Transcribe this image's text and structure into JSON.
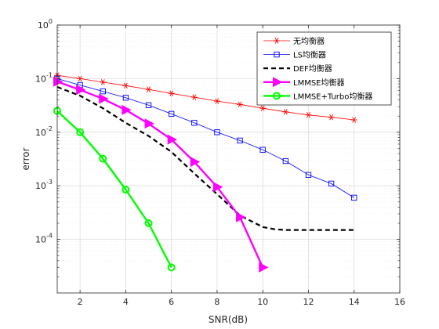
{
  "chart_data": {
    "type": "line",
    "title": "",
    "xlabel": "SNR(dB)",
    "ylabel": "error",
    "xlim": [
      1,
      16
    ],
    "ylim": [
      1e-05,
      1
    ],
    "yscale": "log",
    "xticks": [
      2,
      4,
      6,
      8,
      10,
      12,
      14,
      16
    ],
    "yticks": [
      {
        "value": 0.0001,
        "base": "10",
        "exp": "-4"
      },
      {
        "value": 0.001,
        "base": "10",
        "exp": "-3"
      },
      {
        "value": 0.01,
        "base": "10",
        "exp": "-2"
      },
      {
        "value": 0.1,
        "base": "10",
        "exp": "-1"
      },
      {
        "value": 1,
        "base": "10",
        "exp": "0"
      }
    ],
    "grid": true,
    "minor_grid": true,
    "legend_position": "top-right",
    "series": [
      {
        "name": "无均衡器",
        "color": "#ff0000",
        "marker": "asterisk",
        "line_style": "solid",
        "line_width": 0.8,
        "x": [
          1,
          2,
          3,
          4,
          5,
          6,
          7,
          8,
          9,
          10,
          11,
          12,
          13,
          14
        ],
        "y": [
          0.115,
          0.1,
          0.086,
          0.074,
          0.063,
          0.053,
          0.045,
          0.038,
          0.033,
          0.028,
          0.024,
          0.021,
          0.019,
          0.017
        ]
      },
      {
        "name": "LS均衡器",
        "color": "#0000ff",
        "marker": "square",
        "line_style": "solid",
        "line_width": 0.8,
        "x": [
          1,
          2,
          3,
          4,
          5,
          6,
          7,
          8,
          9,
          10,
          11,
          12,
          13,
          14
        ],
        "y": [
          0.1,
          0.076,
          0.058,
          0.044,
          0.032,
          0.022,
          0.015,
          0.01,
          0.007,
          0.0047,
          0.0029,
          0.0016,
          0.0011,
          0.0006
        ]
      },
      {
        "name": "DEF均衡器",
        "color": "#000000",
        "marker": "none",
        "line_style": "dashed",
        "line_width": 2.2,
        "x": [
          1,
          2,
          3,
          4,
          5,
          6,
          7,
          8,
          9,
          10,
          10.5,
          11,
          12,
          13,
          14
        ],
        "y": [
          0.07,
          0.048,
          0.028,
          0.015,
          0.0085,
          0.0043,
          0.0017,
          0.0007,
          0.00028,
          0.00017,
          0.000155,
          0.00015,
          0.00015,
          0.00015,
          0.00015
        ]
      },
      {
        "name": "LMMSE均衡器",
        "color": "#ff00ff",
        "marker": "triangle-right",
        "line_style": "solid",
        "line_width": 2.4,
        "x": [
          1,
          2,
          3,
          4,
          5,
          6,
          7,
          8,
          9,
          10
        ],
        "y": [
          0.088,
          0.062,
          0.042,
          0.026,
          0.0145,
          0.0073,
          0.0028,
          0.00095,
          0.00026,
          3e-05
        ]
      },
      {
        "name": "LMMSE+Turbo均衡器",
        "color": "#00ff00",
        "marker": "circle",
        "line_style": "solid",
        "line_width": 2.4,
        "x": [
          1,
          2,
          3,
          4,
          5,
          6
        ],
        "y": [
          0.025,
          0.01,
          0.0032,
          0.00085,
          0.0002,
          3e-05
        ]
      }
    ]
  }
}
